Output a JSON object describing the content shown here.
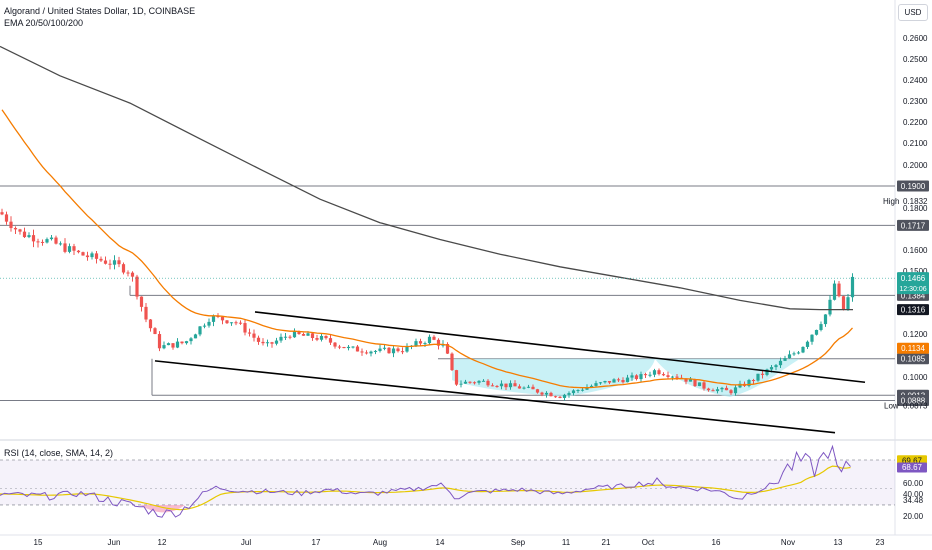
{
  "header": {
    "title": "Algorand / United States Dollar, 1D, COINBASE",
    "indicator": "EMA 20/50/100/200",
    "rsi_title": "RSI (14, close, SMA, 14, 2)",
    "currency": "USD"
  },
  "colors": {
    "up": "#26a69a",
    "down": "#ef5350",
    "ema50": "#f57c00",
    "ema200": "#4a4a4a",
    "rsi": "#7e57c2",
    "rsi_sma": "#e6c800",
    "cup_fill": "#b2ebf2",
    "channel": "#000000",
    "level_line": "#787b86"
  },
  "chart_data": {
    "type": "candlestick",
    "x_ticks": [
      "15",
      "Jun",
      "12",
      "Jul",
      "17",
      "Aug",
      "14",
      "Sep",
      "11",
      "21",
      "Oct",
      "16",
      "Nov",
      "13",
      "23"
    ],
    "price_axis": [
      "0.2600",
      "0.2500",
      "0.2400",
      "0.2300",
      "0.2200",
      "0.2100",
      "0.2000",
      "0.1800",
      "0.1600",
      "0.1500",
      "0.1200",
      "0.1000"
    ],
    "ylim": [
      0.085,
      0.268
    ],
    "levels": [
      {
        "label": "0.1900",
        "value": 0.19
      },
      {
        "label": "0.1717",
        "value": 0.1717
      },
      {
        "label": "0.1384",
        "value": 0.1384
      },
      {
        "label": "0.1085",
        "value": 0.1085
      },
      {
        "label": "0.0913",
        "value": 0.0913
      },
      {
        "label": "0.0888",
        "value": 0.0888
      }
    ],
    "markers": {
      "high_label": "High",
      "high_value": "0.1832",
      "low_label": "Low",
      "low_value": "0.0873",
      "last_price": "0.1466",
      "countdown": "12:30:06",
      "ema200_value": "0.1316",
      "ema50_value": "0.1134"
    },
    "rsi": {
      "axis": [
        "69.67",
        "68.67",
        "60.00",
        "40.00",
        "34.48",
        "20.00"
      ],
      "ylim": [
        15,
        80
      ],
      "band": [
        30,
        70
      ]
    }
  }
}
